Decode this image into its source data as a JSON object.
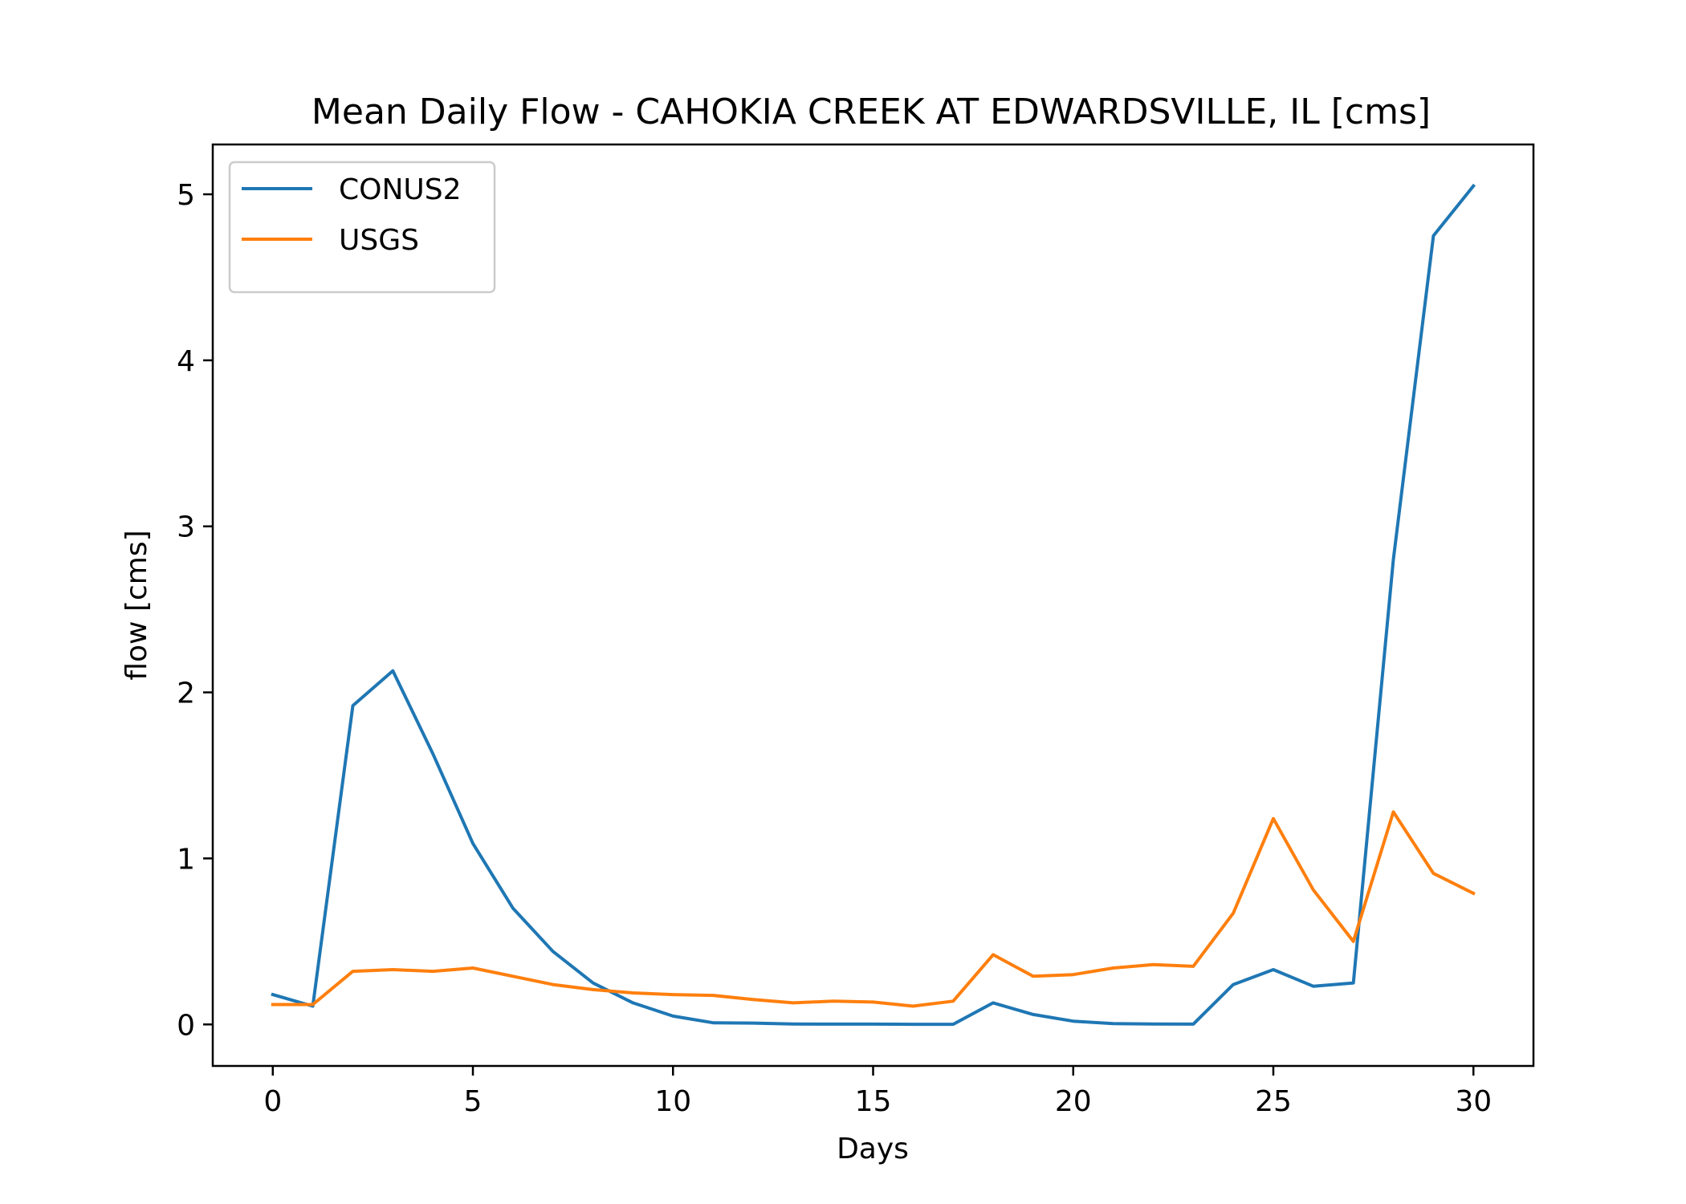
{
  "chart_data": {
    "type": "line",
    "title": "Mean Daily Flow - CAHOKIA CREEK AT EDWARDSVILLE, IL [cms]",
    "xlabel": "Days",
    "ylabel": "flow [cms]",
    "xlim": [
      -1.5,
      31.5
    ],
    "ylim": [
      -0.25,
      5.3
    ],
    "xticks": [
      0,
      5,
      10,
      15,
      20,
      25,
      30
    ],
    "yticks": [
      0,
      1,
      2,
      3,
      4,
      5
    ],
    "x": [
      0,
      1,
      2,
      3,
      4,
      5,
      6,
      7,
      8,
      9,
      10,
      11,
      12,
      13,
      14,
      15,
      16,
      17,
      18,
      19,
      20,
      21,
      22,
      23,
      24,
      25,
      26,
      27,
      28,
      29,
      30
    ],
    "grid": false,
    "legend_position": "top-left",
    "series": [
      {
        "name": "CONUS2",
        "color": "#1f77b4",
        "values": [
          0.18,
          0.11,
          1.92,
          2.13,
          1.63,
          1.09,
          0.7,
          0.44,
          0.25,
          0.13,
          0.05,
          0.01,
          0.008,
          0.003,
          0.002,
          0.002,
          0.001,
          0.001,
          0.13,
          0.06,
          0.02,
          0.005,
          0.003,
          0.002,
          0.24,
          0.33,
          0.23,
          0.25,
          2.8,
          4.75,
          5.05
        ]
      },
      {
        "name": "USGS",
        "color": "#ff7f0e",
        "values": [
          0.12,
          0.12,
          0.32,
          0.33,
          0.32,
          0.34,
          0.29,
          0.24,
          0.21,
          0.19,
          0.18,
          0.175,
          0.15,
          0.13,
          0.14,
          0.135,
          0.11,
          0.14,
          0.42,
          0.29,
          0.3,
          0.34,
          0.36,
          0.35,
          0.67,
          1.24,
          0.81,
          0.5,
          1.28,
          0.91,
          0.79
        ]
      }
    ]
  }
}
